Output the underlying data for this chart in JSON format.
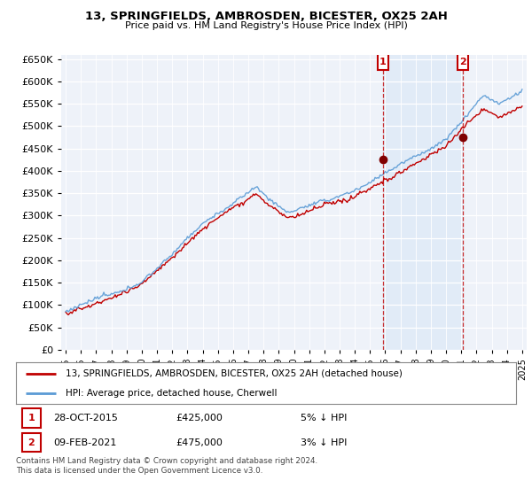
{
  "title1": "13, SPRINGFIELDS, AMBROSDEN, BICESTER, OX25 2AH",
  "title2": "Price paid vs. HM Land Registry's House Price Index (HPI)",
  "legend_line1": "13, SPRINGFIELDS, AMBROSDEN, BICESTER, OX25 2AH (detached house)",
  "legend_line2": "HPI: Average price, detached house, Cherwell",
  "annotation1": {
    "label": "1",
    "date": "28-OCT-2015",
    "price": 425000,
    "note": "5% ↓ HPI"
  },
  "annotation2": {
    "label": "2",
    "date": "09-FEB-2021",
    "price": 475000,
    "note": "3% ↓ HPI"
  },
  "footer": "Contains HM Land Registry data © Crown copyright and database right 2024.\nThis data is licensed under the Open Government Licence v3.0.",
  "hpi_color": "#5b9bd5",
  "price_color": "#c00000",
  "annotation_color": "#c00000",
  "shade_color": "#dce9f7",
  "background_chart": "#eef2f9",
  "grid_color": "#ffffff",
  "ylim": [
    0,
    660000
  ],
  "yticks": [
    0,
    50000,
    100000,
    150000,
    200000,
    250000,
    300000,
    350000,
    400000,
    450000,
    500000,
    550000,
    600000,
    650000
  ],
  "start_year": 1995,
  "end_year": 2025,
  "t1_year_val": 2015.833,
  "t2_year_val": 2021.083,
  "t1_price": 425000,
  "t2_price": 475000
}
